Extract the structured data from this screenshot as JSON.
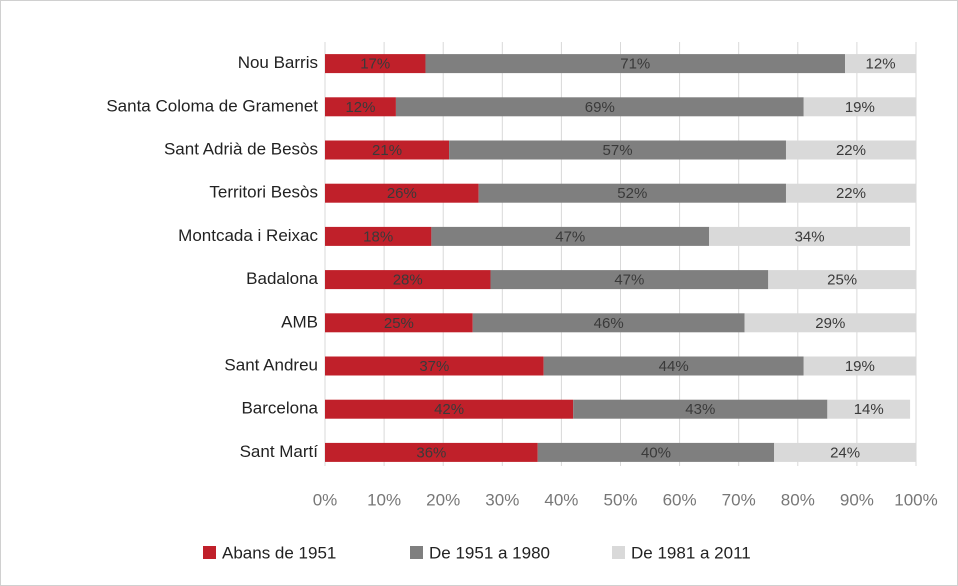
{
  "chart_data": {
    "type": "stacked-bar-horizontal",
    "categories": [
      "Nou Barris",
      "Santa Coloma de Gramenet",
      "Sant Adrià de Besòs",
      "Territori Besòs",
      "Montcada i Reixac",
      "Badalona",
      "AMB",
      "Sant Andreu",
      "Barcelona",
      "Sant Martí"
    ],
    "series": [
      {
        "name": "Abans de 1951",
        "color": "#c0202a",
        "values": [
          17,
          12,
          21,
          26,
          18,
          28,
          25,
          37,
          42,
          36
        ],
        "value_labels": [
          "17%",
          "12%",
          "21%",
          "26%",
          "18%",
          "28%",
          "25%",
          "37%",
          "42%",
          "36%"
        ]
      },
      {
        "name": "De 1951 a 1980",
        "color": "#7f7f7f",
        "values": [
          71,
          69,
          57,
          52,
          47,
          47,
          46,
          44,
          43,
          40
        ],
        "value_labels": [
          "71%",
          "69%",
          "57%",
          "52%",
          "47%",
          "47%",
          "46%",
          "44%",
          "43%",
          "40%"
        ]
      },
      {
        "name": "De 1981 a 2011",
        "color": "#d9d9d9",
        "values": [
          12,
          19,
          22,
          22,
          34,
          25,
          29,
          19,
          14,
          24
        ],
        "value_labels": [
          "12%",
          "19%",
          "22%",
          "22%",
          "34%",
          "25%",
          "29%",
          "19%",
          "14%",
          "24%"
        ]
      }
    ],
    "xlim": [
      0,
      100
    ],
    "xticks": [
      {
        "value": 0,
        "label": "0%"
      },
      {
        "value": 10,
        "label": "10%"
      },
      {
        "value": 20,
        "label": "20%"
      },
      {
        "value": 30,
        "label": "30%"
      },
      {
        "value": 40,
        "label": "40%"
      },
      {
        "value": 50,
        "label": "50%"
      },
      {
        "value": 60,
        "label": "60%"
      },
      {
        "value": 70,
        "label": "70%"
      },
      {
        "value": 80,
        "label": "80%"
      },
      {
        "value": 90,
        "label": "90%"
      },
      {
        "value": 100,
        "label": "100%"
      }
    ],
    "grid": true,
    "legend": "bottom"
  }
}
